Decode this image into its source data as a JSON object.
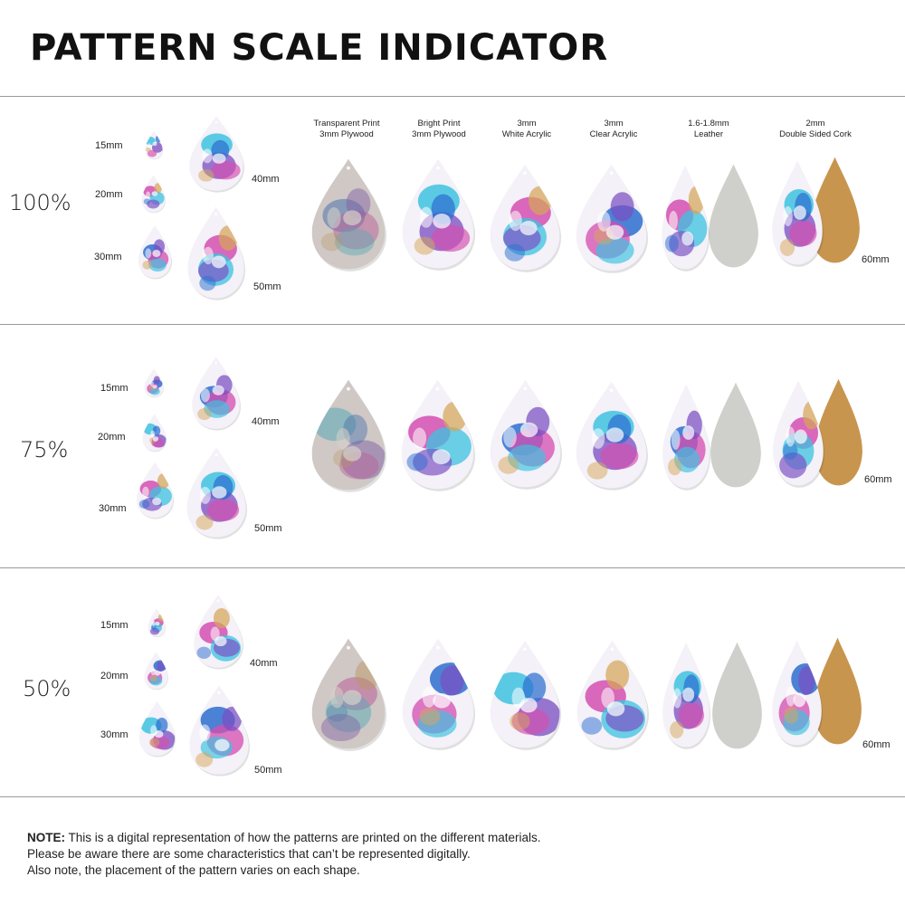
{
  "title": "PATTERN SCALE INDICATOR",
  "materials": [
    {
      "line1": "Transparent Print",
      "line2": "3mm Plywood"
    },
    {
      "line1": "Bright Print",
      "line2": "3mm Plywood"
    },
    {
      "line1": "3mm",
      "line2": "White Acrylic"
    },
    {
      "line1": "3mm",
      "line2": "Clear Acrylic"
    },
    {
      "line1": "1.6-1.8mm",
      "line2": "Leather"
    },
    {
      "line1": "2mm",
      "line2": "Double Sided Cork"
    }
  ],
  "sizes": {
    "s15": "15mm",
    "s20": "20mm",
    "s30": "30mm",
    "s40": "40mm",
    "s50": "50mm",
    "s60": "60mm"
  },
  "scales": [
    "100%",
    "75%",
    "50%"
  ],
  "note": {
    "label": "NOTE:",
    "line1": " This is a digital representation of how the patterns are printed on the different materials.",
    "line2": "Please be aware there are some characteristics that can’t be represented digitally.",
    "line3": "Also note, the placement of the pattern varies on each shape."
  },
  "colors": {
    "cyan": "#3ec3e0",
    "purple": "#7a4fc2",
    "magenta": "#d44fb0",
    "blue": "#2e6fd0",
    "gold": "#d6a659",
    "cork": "#c8954e",
    "leather": "#cfd0cb"
  }
}
